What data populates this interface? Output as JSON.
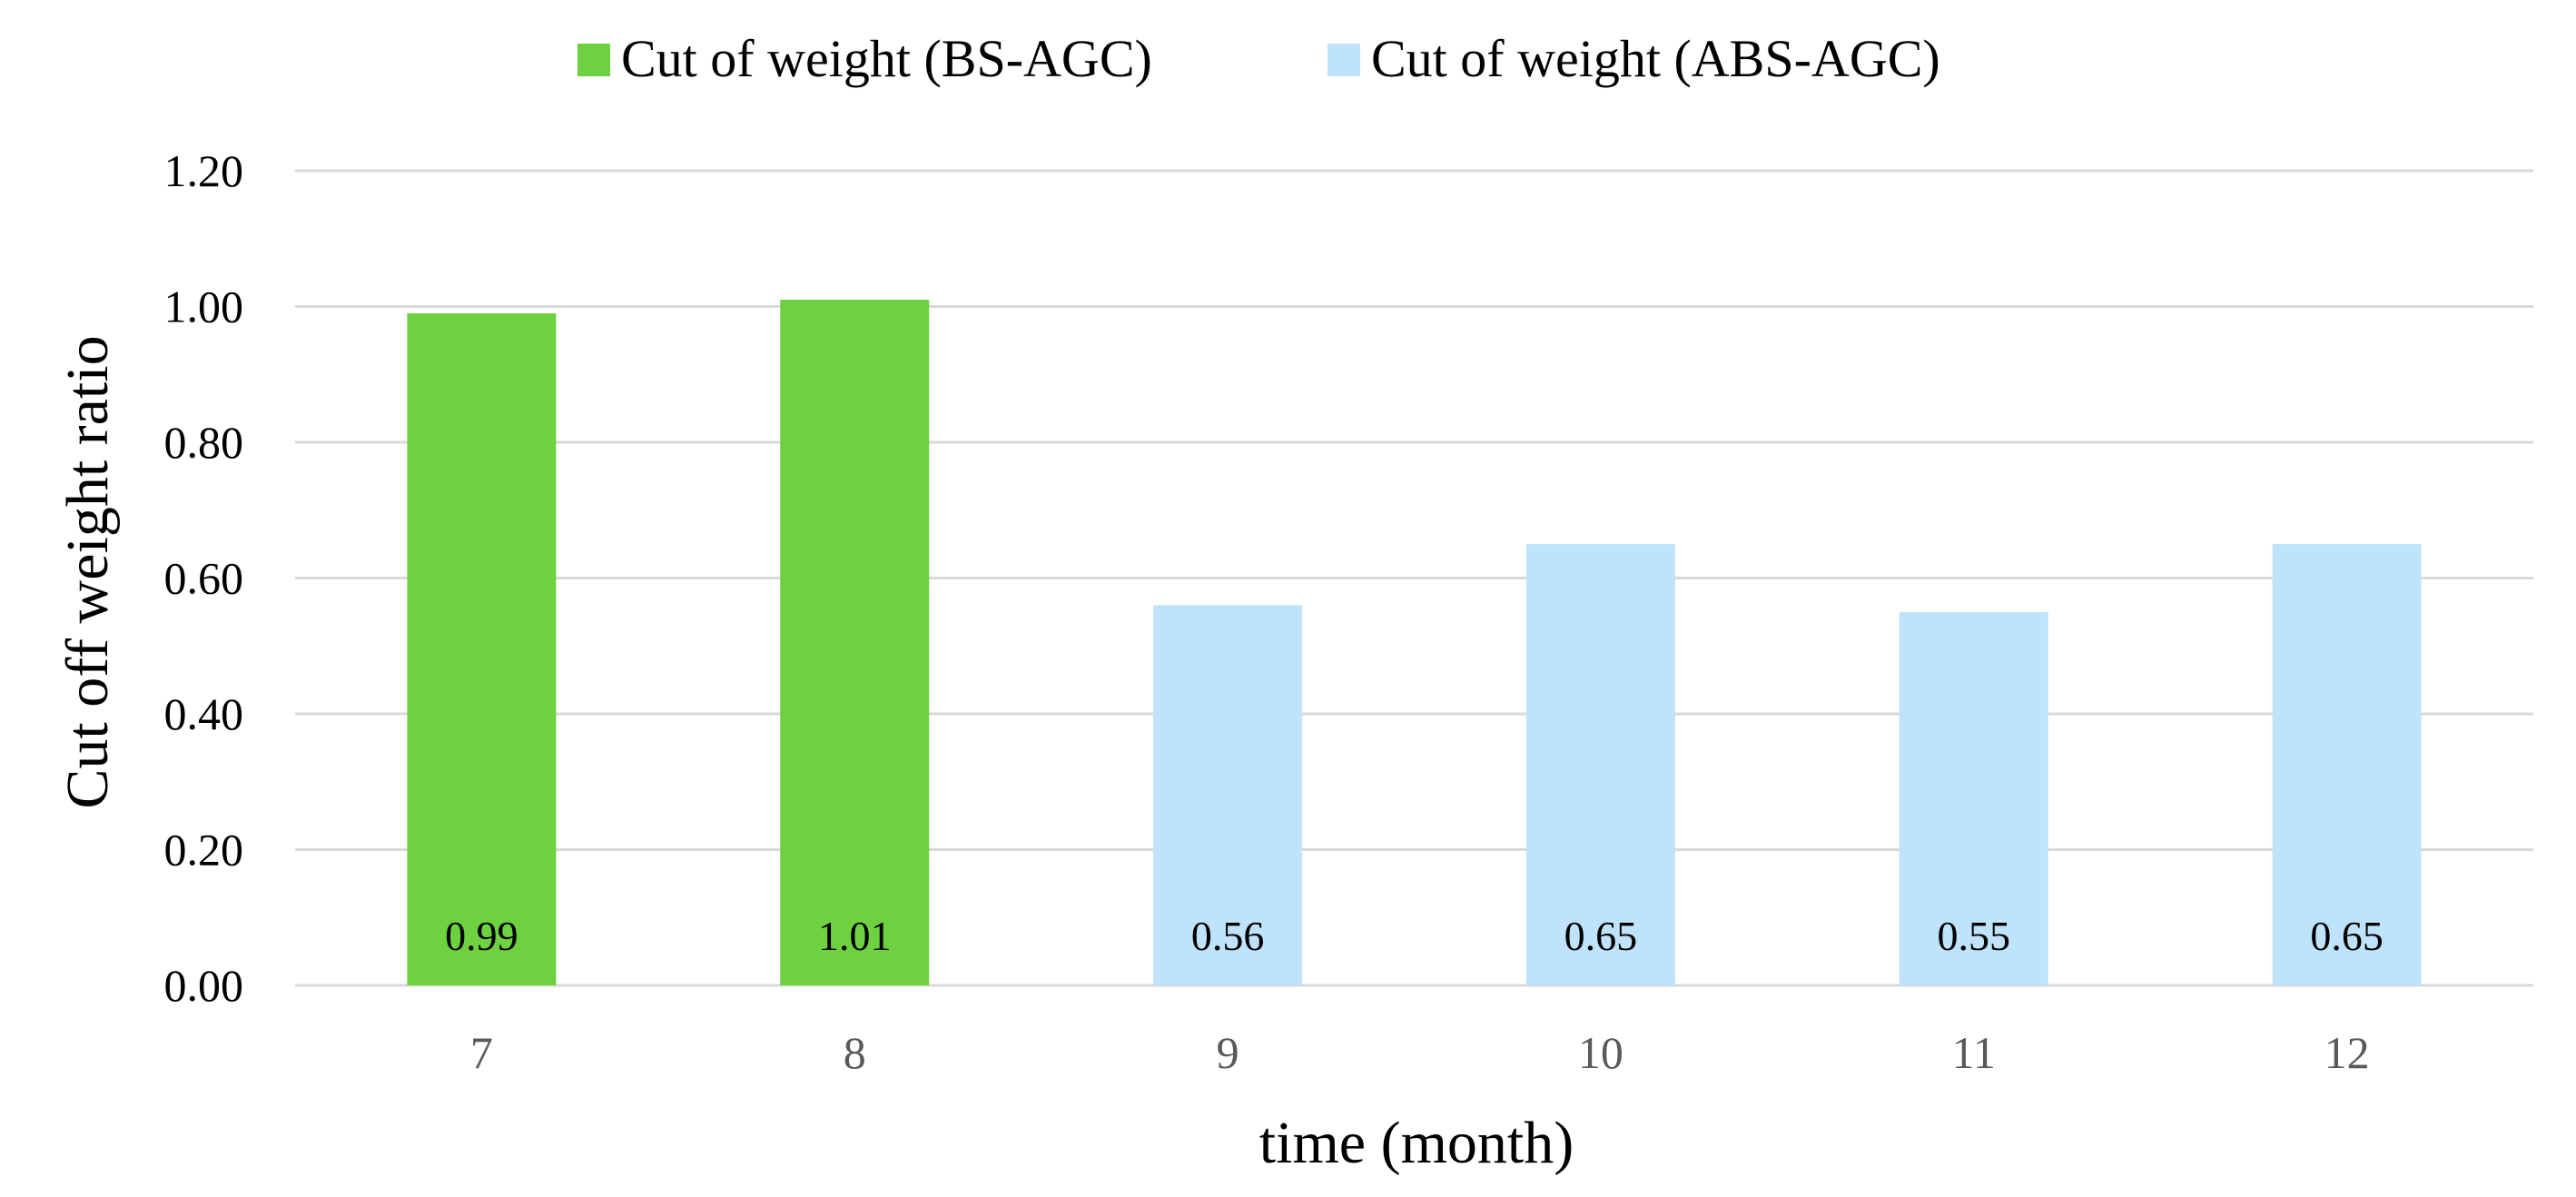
{
  "chart_data": {
    "type": "bar",
    "title": "",
    "xlabel": "time (month)",
    "ylabel": "Cut off weight  ratio",
    "ylim": [
      0,
      1.2
    ],
    "yticks": [
      "0.00",
      "0.20",
      "0.40",
      "0.60",
      "0.80",
      "1.00",
      "1.20"
    ],
    "grid": true,
    "legend_position": "top",
    "categories": [
      "7",
      "8",
      "9",
      "10",
      "11",
      "12"
    ],
    "series": [
      {
        "name": "Cut of weight (BS-AGC)",
        "color": "#6dd140",
        "values": [
          0.99,
          1.01,
          null,
          null,
          null,
          null
        ],
        "labels": [
          "0.99",
          "1.01",
          null,
          null,
          null,
          null
        ]
      },
      {
        "name": "Cut of weight (ABS-AGC)",
        "color": "#bfe3fa",
        "values": [
          null,
          null,
          0.56,
          0.65,
          0.55,
          0.65
        ],
        "labels": [
          null,
          null,
          "0.56",
          "0.65",
          "0.55",
          "0.65"
        ]
      }
    ]
  }
}
